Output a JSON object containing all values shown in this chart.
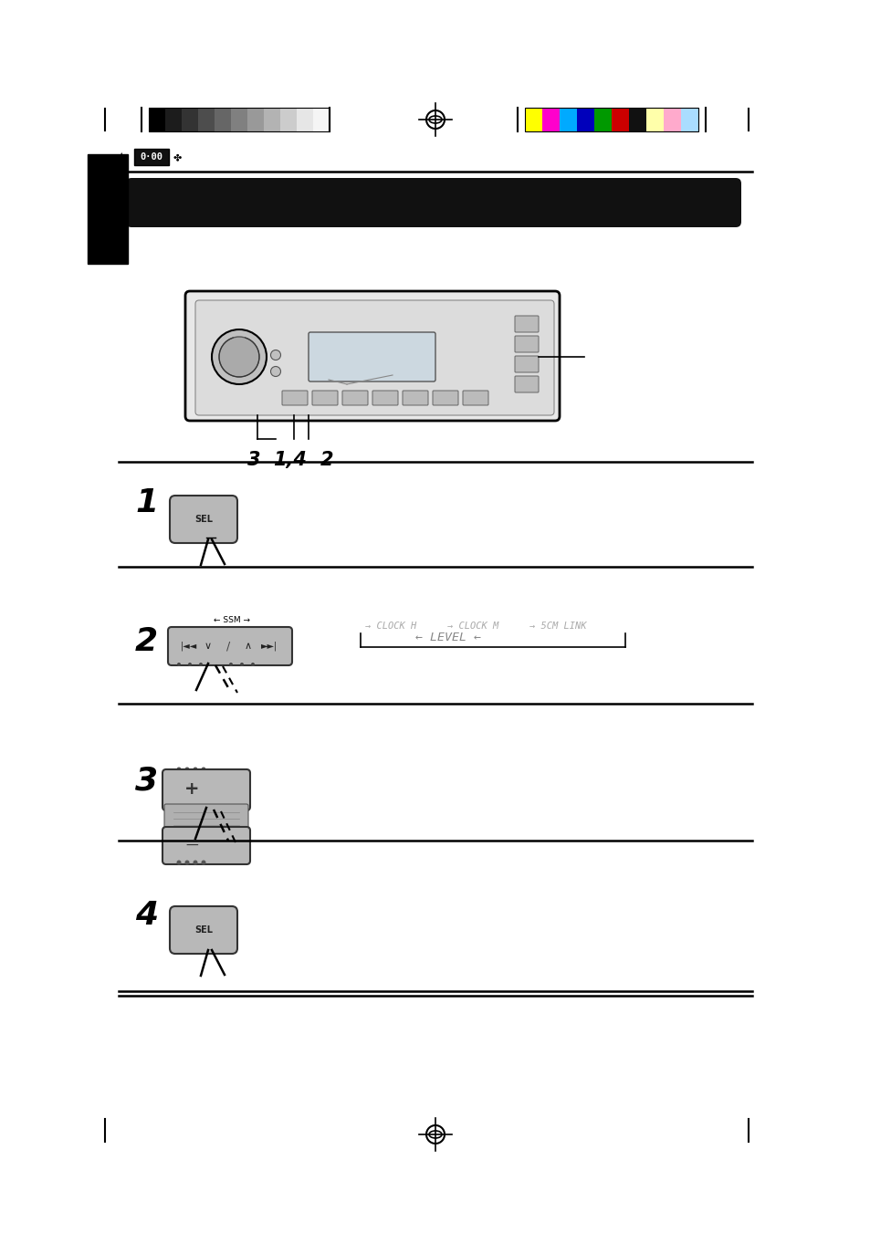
{
  "bg_color": "#ffffff",
  "grayscale_colors": [
    "#000000",
    "#1c1c1c",
    "#333333",
    "#4d4d4d",
    "#666666",
    "#808080",
    "#999999",
    "#b3b3b3",
    "#cccccc",
    "#e6e6e6",
    "#f5f5f5"
  ],
  "color_bar_colors": [
    "#ffff00",
    "#ff00cc",
    "#00aaff",
    "#0000bb",
    "#009900",
    "#cc0000",
    "#111111",
    "#ffffaa",
    "#ffaacc",
    "#aaddff"
  ],
  "step_labels": [
    "1",
    "2",
    "3",
    "4"
  ],
  "flow_labels": [
    "CLOCK H",
    "CLOCK M",
    "5CM LINK"
  ],
  "level_label": "LEVEL",
  "ssm_label": "SSM"
}
